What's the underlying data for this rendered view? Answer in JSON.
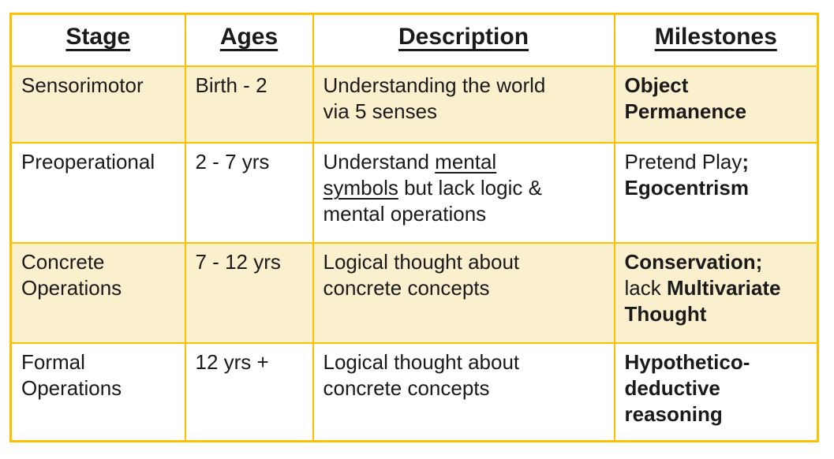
{
  "colors": {
    "border": "#FFC000",
    "row_shaded": "#FBF0CE",
    "row_plain": "#FFFFFF",
    "text": "#1A1A1A"
  },
  "table": {
    "headers": [
      {
        "label": "Stage"
      },
      {
        "label": "Ages"
      },
      {
        "label": "Description"
      },
      {
        "label": "Milestones"
      }
    ],
    "rows": [
      {
        "shaded": true,
        "stage": [
          {
            "text": "Sensorimotor"
          }
        ],
        "ages": [
          {
            "text": "Birth - 2"
          }
        ],
        "description": [
          {
            "text": "Understanding the world"
          },
          {
            "br": true
          },
          {
            "text": "via 5 senses"
          }
        ],
        "milestones": [
          {
            "text": "Object",
            "bold": true
          },
          {
            "br": true
          },
          {
            "text": "Permanence",
            "bold": true
          }
        ]
      },
      {
        "shaded": false,
        "stage": [
          {
            "text": "Preoperational"
          }
        ],
        "ages": [
          {
            "text": "2 - 7 yrs"
          }
        ],
        "description": [
          {
            "text": "Understand "
          },
          {
            "text": "mental",
            "underline": true
          },
          {
            "br": true
          },
          {
            "text": "symbols",
            "underline": true
          },
          {
            "text": " but lack logic &"
          },
          {
            "br": true
          },
          {
            "text": "mental operations"
          }
        ],
        "milestones": [
          {
            "text": "Pretend Play"
          },
          {
            "text": ";",
            "bold": true
          },
          {
            "br": true
          },
          {
            "text": "Egocentrism",
            "bold": true
          }
        ]
      },
      {
        "shaded": true,
        "stage": [
          {
            "text": "Concrete"
          },
          {
            "br": true
          },
          {
            "text": "Operations"
          }
        ],
        "ages": [
          {
            "text": "7 - 12 yrs"
          }
        ],
        "description": [
          {
            "text": "Logical thought about"
          },
          {
            "br": true
          },
          {
            "text": "concrete concepts"
          }
        ],
        "milestones": [
          {
            "text": "Conservation;",
            "bold": true
          },
          {
            "br": true
          },
          {
            "text": "lack "
          },
          {
            "text": "Multivariate",
            "bold": true
          },
          {
            "br": true
          },
          {
            "text": "Thought",
            "bold": true
          }
        ]
      },
      {
        "shaded": false,
        "stage": [
          {
            "text": "Formal"
          },
          {
            "br": true
          },
          {
            "text": "Operations"
          }
        ],
        "ages": [
          {
            "text": "12 yrs +"
          }
        ],
        "description": [
          {
            "text": "Logical thought about"
          },
          {
            "br": true
          },
          {
            "text": "concrete concepts"
          }
        ],
        "milestones": [
          {
            "text": "Hypothetico-",
            "bold": true
          },
          {
            "br": true
          },
          {
            "text": "deductive",
            "bold": true
          },
          {
            "br": true
          },
          {
            "text": "reasoning",
            "bold": true
          }
        ]
      }
    ]
  }
}
